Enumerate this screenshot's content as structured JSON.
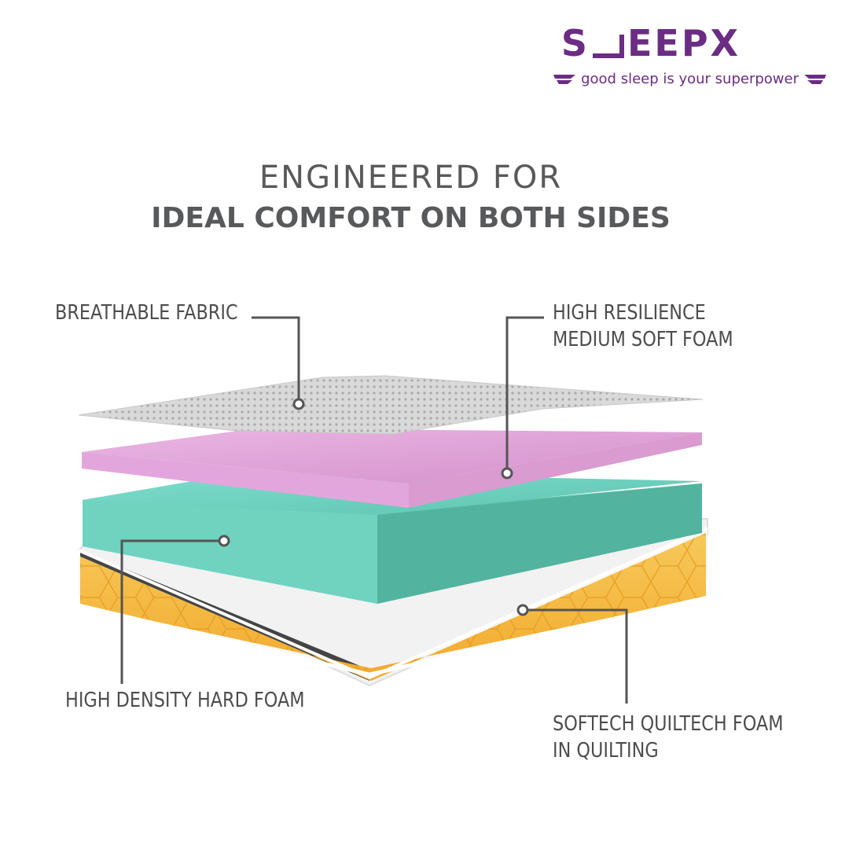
{
  "brand": {
    "logo_text_left": "S",
    "logo_text_right": "EEPX",
    "tagline": "good sleep is your superpower",
    "brand_color": "#6b2c84"
  },
  "headline": {
    "line1": "ENGINEERED FOR",
    "line2": "IDEAL COMFORT ON BOTH SIDES"
  },
  "layers": {
    "fabric": {
      "label": "BREATHABLE FABRIC",
      "color": "#cfcfcf"
    },
    "hr_foam": {
      "label_line1": "HIGH RESILIENCE",
      "label_line2": "MEDIUM SOFT FOAM",
      "color": "#e3a6dc"
    },
    "hd_foam": {
      "label": "HIGH DENSITY HARD FOAM",
      "color": "#6fd3c0"
    },
    "quilt": {
      "label_line1": "SOFTECH QUILTECH FOAM",
      "label_line2": "IN QUILTING",
      "color": "#f6b742"
    }
  }
}
